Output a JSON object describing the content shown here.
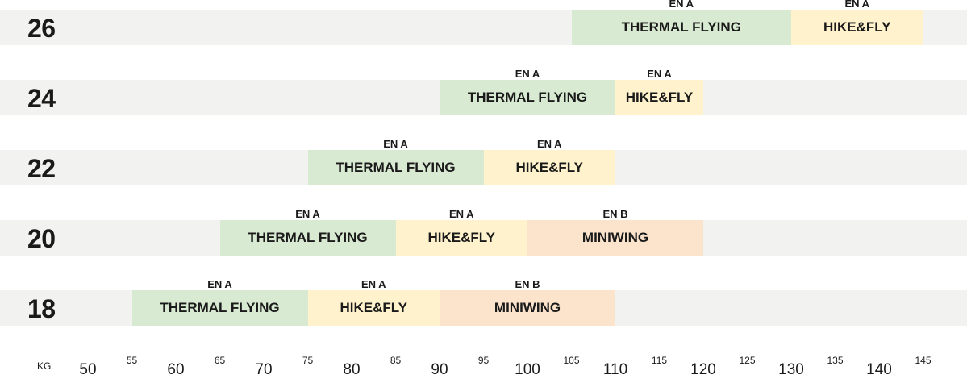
{
  "chart_data": {
    "type": "bar",
    "axis": {
      "unit": "KG",
      "major_ticks": [
        "50",
        "60",
        "70",
        "80",
        "90",
        "100",
        "110",
        "120",
        "130",
        "140"
      ],
      "minor_ticks": [
        "55",
        "65",
        "75",
        "85",
        "95",
        "105",
        "115",
        "125",
        "135",
        "145"
      ],
      "xlim": [
        45,
        155
      ]
    },
    "rows": [
      {
        "size": "26",
        "segments": [
          {
            "label": "THERMAL FLYING",
            "cert": "EN A",
            "start": 105,
            "end": 130,
            "kind": "thermal"
          },
          {
            "label": "HIKE&FLY",
            "cert": "EN A",
            "start": 130,
            "end": 145,
            "kind": "hike"
          }
        ]
      },
      {
        "size": "24",
        "segments": [
          {
            "label": "THERMAL FLYING",
            "cert": "EN A",
            "start": 90,
            "end": 110,
            "kind": "thermal"
          },
          {
            "label": "HIKE&FLY",
            "cert": "EN A",
            "start": 110,
            "end": 120,
            "kind": "hike"
          }
        ]
      },
      {
        "size": "22",
        "segments": [
          {
            "label": "THERMAL FLYING",
            "cert": "EN A",
            "start": 75,
            "end": 95,
            "kind": "thermal"
          },
          {
            "label": "HIKE&FLY",
            "cert": "EN A",
            "start": 95,
            "end": 110,
            "kind": "hike"
          }
        ]
      },
      {
        "size": "20",
        "segments": [
          {
            "label": "THERMAL FLYING",
            "cert": "EN A",
            "start": 65,
            "end": 85,
            "kind": "thermal"
          },
          {
            "label": "HIKE&FLY",
            "cert": "EN A",
            "start": 85,
            "end": 100,
            "kind": "hike"
          },
          {
            "label": "MINIWING",
            "cert": "EN B",
            "start": 100,
            "end": 120,
            "kind": "mini"
          }
        ]
      },
      {
        "size": "18",
        "segments": [
          {
            "label": "THERMAL FLYING",
            "cert": "EN A",
            "start": 55,
            "end": 75,
            "kind": "thermal"
          },
          {
            "label": "HIKE&FLY",
            "cert": "EN A",
            "start": 75,
            "end": 90,
            "kind": "hike"
          },
          {
            "label": "MINIWING",
            "cert": "EN B",
            "start": 90,
            "end": 110,
            "kind": "mini"
          }
        ]
      }
    ],
    "colors": {
      "thermal": "#d9ead3",
      "hike": "#fff2cc",
      "mini": "#fbe3cc",
      "row_background": "#f2f2f0"
    }
  }
}
